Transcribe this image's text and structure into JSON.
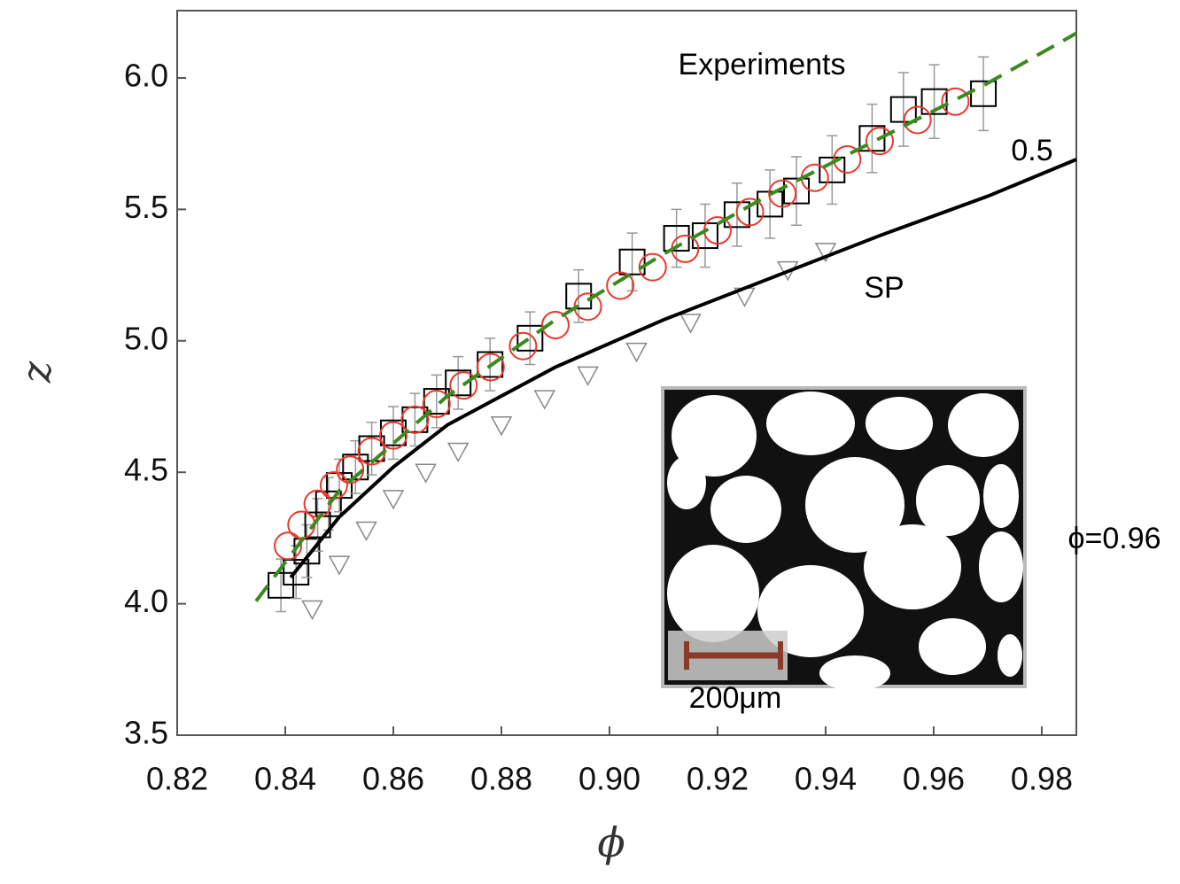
{
  "chart_data": {
    "type": "scatter",
    "x_label": "ϕ",
    "y_label": "z",
    "xlim": [
      0.82,
      0.9864
    ],
    "ylim": [
      3.5,
      6.256
    ],
    "xticks": [
      0.82,
      0.84,
      0.86,
      0.88,
      {
        "value": 0.9,
        "label": "0.90"
      },
      0.92,
      0.94,
      0.96,
      0.98
    ],
    "yticks": [
      3.5,
      {
        "value": 4,
        "label": "4.0"
      },
      4.5,
      {
        "value": 5,
        "label": "5.0"
      },
      5.5,
      {
        "value": 6,
        "label": "6.0"
      }
    ],
    "annotations": [
      "Experiments",
      "0.5",
      "SP",
      "ϕ=0.96",
      "200μm"
    ],
    "series": [
      {
        "style": "triangles",
        "color": "#888888",
        "x": [
          0.845,
          0.85,
          0.855,
          0.86,
          0.866,
          0.872,
          0.88,
          0.888,
          0.896,
          0.905,
          0.915,
          0.925,
          0.933,
          0.94
        ],
        "values": [
          3.98,
          4.15,
          4.28,
          4.4,
          4.5,
          4.58,
          4.68,
          4.78,
          4.87,
          4.96,
          5.07,
          5.17,
          5.27,
          5.34
        ]
      },
      {
        "style": "squares",
        "color": "#000000",
        "x": [
          0.8392,
          0.842,
          0.844,
          0.846,
          0.848,
          0.85,
          0.853,
          0.856,
          0.86,
          0.864,
          0.868,
          0.872,
          0.8779,
          0.8853,
          0.8943,
          0.9042,
          0.9124,
          0.9177,
          0.9236,
          0.9297,
          0.9346,
          0.9412,
          0.9486,
          0.9544,
          0.9601,
          0.9692
        ],
        "values": [
          4.07,
          4.12,
          4.2,
          4.3,
          4.38,
          4.45,
          4.52,
          4.59,
          4.65,
          4.7,
          4.77,
          4.84,
          4.91,
          5.01,
          5.17,
          5.3,
          5.39,
          5.4,
          5.48,
          5.52,
          5.57,
          5.65,
          5.77,
          5.88,
          5.91,
          5.94
        ],
        "errors": [
          0.1,
          0.1,
          0.1,
          0.1,
          0.1,
          0.1,
          0.1,
          0.1,
          0.1,
          0.1,
          0.1,
          0.1,
          0.1,
          0.1,
          0.1,
          0.11,
          0.11,
          0.12,
          0.12,
          0.13,
          0.13,
          0.13,
          0.13,
          0.14,
          0.14,
          0.14
        ]
      },
      {
        "style": "circles",
        "color": "#e8392b",
        "x": [
          0.8405,
          0.843,
          0.846,
          0.849,
          0.852,
          0.856,
          0.86,
          0.864,
          0.868,
          0.873,
          0.878,
          0.884,
          0.89,
          0.896,
          0.902,
          0.908,
          0.914,
          0.92,
          0.926,
          0.932,
          0.938,
          0.944,
          0.95,
          0.957,
          0.964
        ],
        "values": [
          4.22,
          4.3,
          4.38,
          4.45,
          4.51,
          4.58,
          4.64,
          4.7,
          4.76,
          4.83,
          4.9,
          4.98,
          5.06,
          5.13,
          5.21,
          5.28,
          5.35,
          5.42,
          5.49,
          5.56,
          5.62,
          5.69,
          5.76,
          5.84,
          5.91
        ]
      },
      {
        "style": "solid",
        "color": "#000000",
        "x": [
          0.841,
          0.85,
          0.86,
          0.87,
          0.89,
          0.91,
          0.93,
          0.95,
          0.97,
          0.9864
        ],
        "values": [
          4.1,
          4.33,
          4.52,
          4.68,
          4.9,
          5.08,
          5.24,
          5.4,
          5.55,
          5.69
        ]
      },
      {
        "style": "dashed",
        "color": "#3a8a1e",
        "x": [
          0.8346,
          0.85,
          0.87,
          0.89,
          0.91,
          0.93,
          0.95,
          0.97,
          0.9864
        ],
        "values": [
          4.01,
          4.43,
          4.79,
          5.08,
          5.33,
          5.56,
          5.77,
          5.98,
          6.17
        ]
      }
    ]
  }
}
